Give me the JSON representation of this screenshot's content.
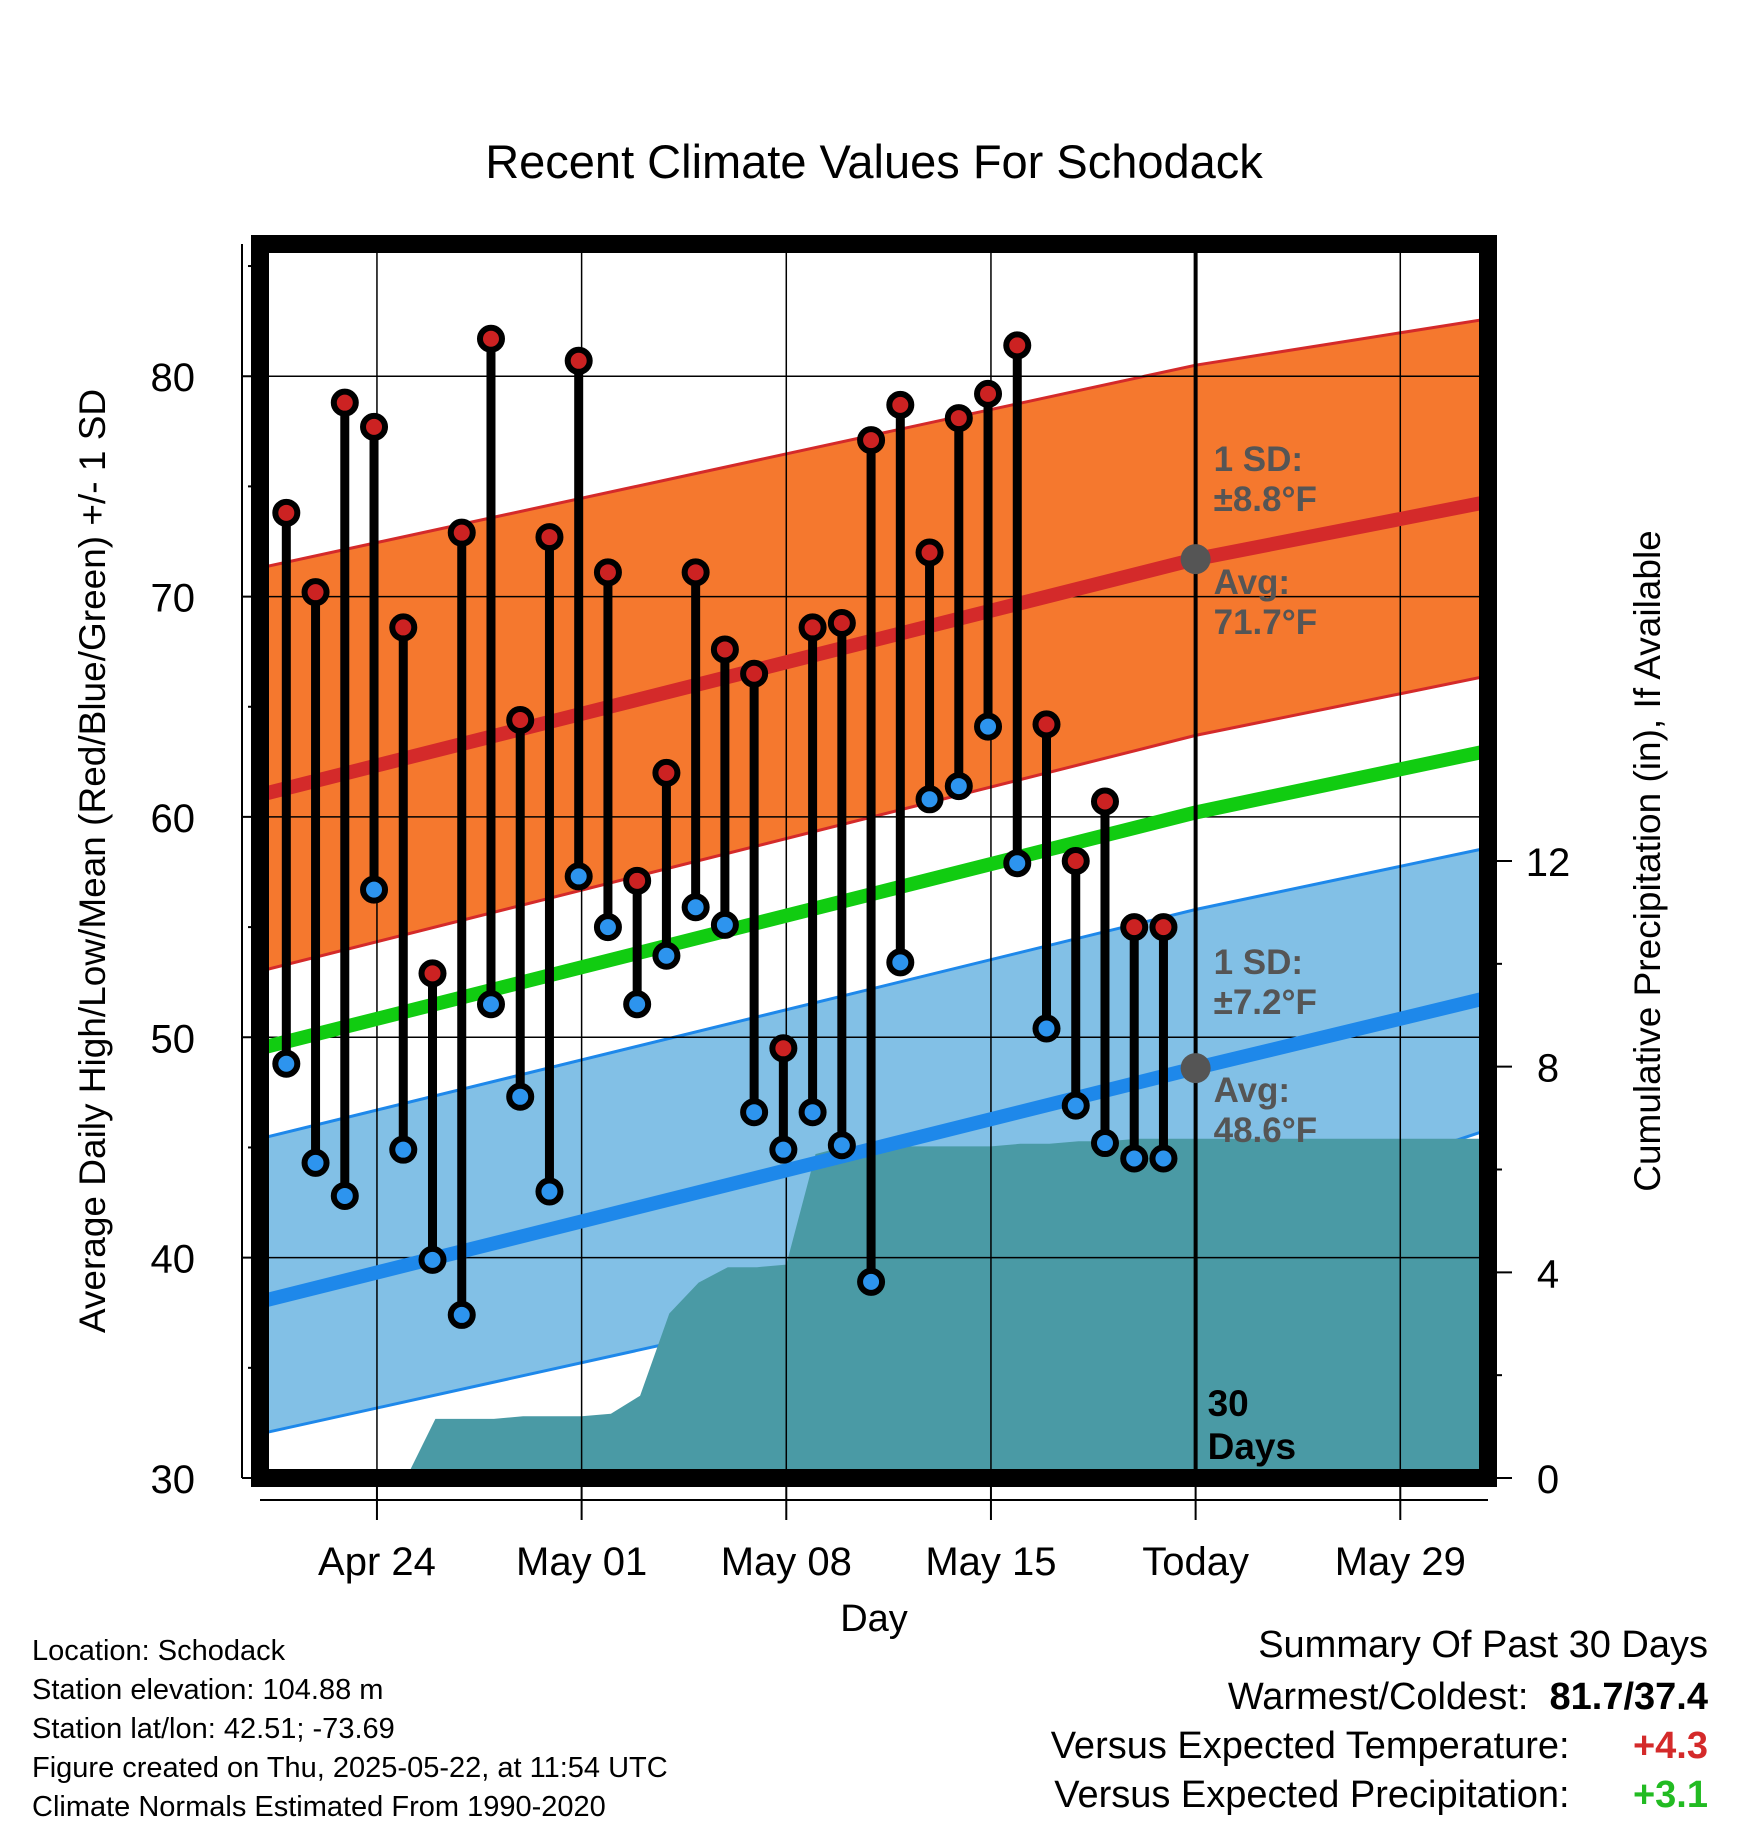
{
  "chart_data": {
    "type": "line",
    "title": "Recent Climate Values For Schodack",
    "xlabel": "Day",
    "ylabel": "Average Daily High/Low/Mean (Red/Blue/Green) +/- 1 SD",
    "y2label": "Cumulative Precipitation (in), If Available",
    "ylim": [
      30,
      86
    ],
    "y_ticks": [
      "30",
      "40",
      "50",
      "60",
      "70",
      "80"
    ],
    "y2lim": [
      0,
      24
    ],
    "y2_ticks": [
      "0",
      "4",
      "8",
      "12"
    ],
    "xlim": [
      "2025-04-20",
      "2025-06-01"
    ],
    "x_ticks": [
      {
        "date": "2025-04-24",
        "label": "Apr 24"
      },
      {
        "date": "2025-05-01",
        "label": "May 01"
      },
      {
        "date": "2025-05-08",
        "label": "May 08"
      },
      {
        "date": "2025-05-15",
        "label": "May 15"
      },
      {
        "date": "2025-05-22",
        "label": "Today"
      },
      {
        "date": "2025-05-29",
        "label": "May 29"
      }
    ],
    "today": "2025-05-22",
    "today_label": "30\nDays",
    "grid": true,
    "colors": {
      "high_band": "#f5782e",
      "high_line": "#d42a2a",
      "low_band": "#82c0e6",
      "low_line": "#1e88ea",
      "mean_line": "#11cc11",
      "precip": "#4a9aa5",
      "high_marker": "#cc2222",
      "low_marker": "#2d94ee",
      "annotation": "#555555"
    },
    "normals": {
      "dates": [
        "2025-04-20",
        "2025-05-22",
        "2025-06-01"
      ],
      "high_avg": [
        61.0,
        71.7,
        74.3
      ],
      "high_upper": [
        71.3,
        80.5,
        82.6
      ],
      "high_lower": [
        53.0,
        63.7,
        66.4
      ],
      "low_avg": [
        38.0,
        48.6,
        51.8
      ],
      "low_upper": [
        45.4,
        55.8,
        58.6
      ],
      "low_lower": [
        32.0,
        41.4,
        45.8
      ],
      "mean_avg": [
        49.5,
        60.2,
        63.0
      ]
    },
    "annotations": {
      "high_sd": "1 SD:",
      "high_sd_value": "±8.8°F",
      "high_avg": "Avg:",
      "high_avg_value": "71.7°F",
      "low_sd": "1 SD:",
      "low_sd_value": "±7.2°F",
      "low_avg": "Avg:",
      "low_avg_value": "48.6°F"
    },
    "series": [
      {
        "name": "High",
        "x": [
          "2025-04-21",
          "2025-04-22",
          "2025-04-23",
          "2025-04-24",
          "2025-04-25",
          "2025-04-26",
          "2025-04-27",
          "2025-04-28",
          "2025-04-29",
          "2025-04-30",
          "2025-05-01",
          "2025-05-02",
          "2025-05-03",
          "2025-05-04",
          "2025-05-05",
          "2025-05-06",
          "2025-05-07",
          "2025-05-08",
          "2025-05-09",
          "2025-05-10",
          "2025-05-11",
          "2025-05-12",
          "2025-05-13",
          "2025-05-14",
          "2025-05-15",
          "2025-05-16",
          "2025-05-17",
          "2025-05-18",
          "2025-05-19",
          "2025-05-20",
          "2025-05-21"
        ],
        "values": [
          73.8,
          70.2,
          78.8,
          77.7,
          68.6,
          52.9,
          72.9,
          81.7,
          64.4,
          72.7,
          80.7,
          71.1,
          57.1,
          62.0,
          71.1,
          67.6,
          66.5,
          49.5,
          68.6,
          68.8,
          77.1,
          78.7,
          72.0,
          78.1,
          79.2,
          81.4,
          64.2,
          58.0,
          60.7,
          55.0,
          55.0
        ]
      },
      {
        "name": "Low",
        "x": [
          "2025-04-21",
          "2025-04-22",
          "2025-04-23",
          "2025-04-24",
          "2025-04-25",
          "2025-04-26",
          "2025-04-27",
          "2025-04-28",
          "2025-04-29",
          "2025-04-30",
          "2025-05-01",
          "2025-05-02",
          "2025-05-03",
          "2025-05-04",
          "2025-05-05",
          "2025-05-06",
          "2025-05-07",
          "2025-05-08",
          "2025-05-09",
          "2025-05-10",
          "2025-05-11",
          "2025-05-12",
          "2025-05-13",
          "2025-05-14",
          "2025-05-15",
          "2025-05-16",
          "2025-05-17",
          "2025-05-18",
          "2025-05-19",
          "2025-05-20",
          "2025-05-21"
        ],
        "values": [
          48.8,
          44.3,
          42.8,
          56.7,
          44.9,
          39.9,
          37.4,
          51.5,
          47.3,
          43.0,
          57.3,
          55.0,
          51.5,
          53.7,
          55.9,
          55.1,
          46.6,
          44.9,
          46.6,
          45.1,
          38.9,
          53.4,
          60.8,
          61.4,
          64.1,
          57.9,
          50.4,
          46.9,
          45.2,
          44.5,
          44.5
        ]
      },
      {
        "name": "Cumulative Precipitation",
        "x": [
          "2025-04-20",
          "2025-04-24",
          "2025-04-25",
          "2025-04-26",
          "2025-04-27",
          "2025-04-28",
          "2025-04-29",
          "2025-04-30",
          "2025-05-01",
          "2025-05-02",
          "2025-05-03",
          "2025-05-04",
          "2025-05-05",
          "2025-05-06",
          "2025-05-07",
          "2025-05-08",
          "2025-05-09",
          "2025-05-10",
          "2025-05-11",
          "2025-05-12",
          "2025-05-13",
          "2025-05-14",
          "2025-05-15",
          "2025-05-16",
          "2025-05-17",
          "2025-05-18",
          "2025-05-19",
          "2025-05-20",
          "2025-05-21",
          "2025-05-22",
          "2025-06-01"
        ],
        "values": [
          0.0,
          0.0,
          0.0,
          1.15,
          1.15,
          1.15,
          1.2,
          1.2,
          1.2,
          1.25,
          1.6,
          3.2,
          3.8,
          4.1,
          4.1,
          4.15,
          6.3,
          6.45,
          6.45,
          6.45,
          6.45,
          6.45,
          6.45,
          6.5,
          6.5,
          6.55,
          6.55,
          6.6,
          6.6,
          6.6,
          6.6
        ]
      }
    ]
  },
  "footer": {
    "location": "Location: Schodack",
    "elevation": "Station elevation: 104.88 m",
    "latlon": "Station lat/lon: 42.51; -73.69",
    "created": "Figure created on Thu, 2025-05-22, at 11:54 UTC",
    "normals": "Climate Normals Estimated From 1990-2020"
  },
  "summary": {
    "title": "Summary Of Past 30 Days",
    "warmest_coldest_label": "Warmest/Coldest:",
    "warmest_coldest_value": "81.7/37.4",
    "temp_label": "Versus Expected Temperature:",
    "temp_value": "+4.3",
    "temp_color": "#d42a2a",
    "precip_label": "Versus Expected Precipitation:",
    "precip_value": "+3.1",
    "precip_color": "#22bb22"
  }
}
